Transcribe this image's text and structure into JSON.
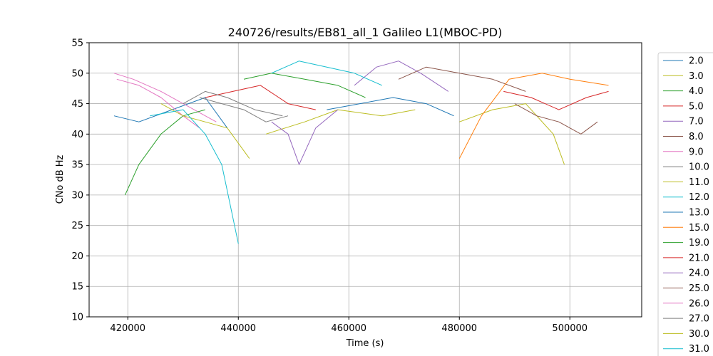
{
  "chart_data": {
    "type": "line",
    "title": "240726/results/EB81_all_1 Galileo L1(MBOC-PD)",
    "xlabel": "Time (s)",
    "ylabel": "CNo dB Hz",
    "xlim": [
      413000,
      513000
    ],
    "ylim": [
      10,
      55
    ],
    "xticks": [
      420000,
      440000,
      460000,
      480000,
      500000
    ],
    "xtick_labels": [
      "420000",
      "440000",
      "460000",
      "480000",
      "500000"
    ],
    "yticks": [
      10,
      15,
      20,
      25,
      30,
      35,
      40,
      45,
      50,
      55
    ],
    "ytick_labels": [
      "10",
      "15",
      "20",
      "25",
      "30",
      "35",
      "40",
      "45",
      "50",
      "55"
    ],
    "grid": true,
    "legend_position": "outside-right",
    "series": [
      {
        "name": "2.0",
        "color": "#1f77b4",
        "points": [
          [
            417500,
            43
          ],
          [
            422000,
            42
          ],
          [
            428000,
            44
          ],
          [
            434000,
            46
          ],
          [
            438000,
            41
          ]
        ]
      },
      {
        "name": "3.0",
        "color": "#bcbd22",
        "points": [
          [
            445000,
            40
          ],
          [
            452000,
            42
          ],
          [
            458000,
            44
          ],
          [
            466000,
            43
          ],
          [
            472000,
            44
          ]
        ]
      },
      {
        "name": "4.0",
        "color": "#2ca02c",
        "points": [
          [
            441000,
            49
          ],
          [
            446000,
            50
          ],
          [
            452000,
            49
          ],
          [
            458000,
            48
          ],
          [
            463000,
            46
          ]
        ]
      },
      {
        "name": "5.0",
        "color": "#d62728",
        "points": [
          [
            434000,
            46
          ],
          [
            439000,
            47
          ],
          [
            444000,
            48
          ],
          [
            449000,
            45
          ],
          [
            454000,
            44
          ]
        ]
      },
      {
        "name": "7.0",
        "color": "#9467bd",
        "points": [
          [
            461000,
            48
          ],
          [
            465000,
            51
          ],
          [
            469000,
            52
          ],
          [
            473000,
            50
          ],
          [
            478000,
            47
          ]
        ]
      },
      {
        "name": "8.0",
        "color": "#8c564b",
        "points": [
          [
            469000,
            49
          ],
          [
            474000,
            51
          ],
          [
            480000,
            50
          ],
          [
            486000,
            49
          ],
          [
            492000,
            47
          ]
        ]
      },
      {
        "name": "9.0",
        "color": "#e377c2",
        "points": [
          [
            417500,
            50
          ],
          [
            421000,
            49
          ],
          [
            426000,
            47
          ],
          [
            432000,
            44
          ],
          [
            436000,
            42
          ]
        ]
      },
      {
        "name": "10.0",
        "color": "#7f7f7f",
        "points": [
          [
            430000,
            45
          ],
          [
            434000,
            47
          ],
          [
            438000,
            46
          ],
          [
            443000,
            44
          ],
          [
            448000,
            43
          ]
        ]
      },
      {
        "name": "11.0",
        "color": "#bcbd22",
        "points": [
          [
            480000,
            42
          ],
          [
            486000,
            44
          ],
          [
            492000,
            45
          ],
          [
            497000,
            40
          ],
          [
            499000,
            35
          ]
        ]
      },
      {
        "name": "12.0",
        "color": "#17becf",
        "points": [
          [
            446000,
            50
          ],
          [
            451000,
            52
          ],
          [
            456000,
            51
          ],
          [
            461000,
            50
          ],
          [
            466000,
            48
          ]
        ]
      },
      {
        "name": "13.0",
        "color": "#1f77b4",
        "points": [
          [
            456000,
            44
          ],
          [
            462000,
            45
          ],
          [
            468000,
            46
          ],
          [
            474000,
            45
          ],
          [
            479000,
            43
          ]
        ]
      },
      {
        "name": "15.0",
        "color": "#ff7f0e",
        "points": [
          [
            480000,
            36
          ],
          [
            484000,
            43
          ],
          [
            489000,
            49
          ],
          [
            495000,
            50
          ],
          [
            500000,
            49
          ],
          [
            507000,
            48
          ]
        ]
      },
      {
        "name": "19.0",
        "color": "#2ca02c",
        "points": [
          [
            419500,
            30
          ],
          [
            422000,
            35
          ],
          [
            426000,
            40
          ],
          [
            430000,
            43
          ],
          [
            434000,
            44
          ]
        ]
      },
      {
        "name": "21.0",
        "color": "#d62728",
        "points": [
          [
            488000,
            47
          ],
          [
            493000,
            46
          ],
          [
            498000,
            44
          ],
          [
            503000,
            46
          ],
          [
            507000,
            47
          ]
        ]
      },
      {
        "name": "24.0",
        "color": "#9467bd",
        "points": [
          [
            446000,
            42
          ],
          [
            449000,
            40
          ],
          [
            451000,
            35
          ],
          [
            454000,
            41
          ],
          [
            458000,
            44
          ]
        ]
      },
      {
        "name": "25.0",
        "color": "#8c564b",
        "points": [
          [
            490000,
            45
          ],
          [
            494000,
            43
          ],
          [
            498000,
            42
          ],
          [
            502000,
            40
          ],
          [
            505000,
            42
          ]
        ]
      },
      {
        "name": "26.0",
        "color": "#e377c2",
        "points": [
          [
            418000,
            49
          ],
          [
            422000,
            48
          ],
          [
            426000,
            46
          ],
          [
            430000,
            43
          ],
          [
            433000,
            41
          ]
        ]
      },
      {
        "name": "27.0",
        "color": "#7f7f7f",
        "points": [
          [
            433000,
            46
          ],
          [
            437000,
            45
          ],
          [
            441000,
            44
          ],
          [
            445000,
            42
          ],
          [
            449000,
            43
          ]
        ]
      },
      {
        "name": "30.0",
        "color": "#bcbd22",
        "points": [
          [
            426000,
            45
          ],
          [
            430000,
            43
          ],
          [
            434000,
            42
          ],
          [
            438000,
            41
          ],
          [
            442000,
            36
          ]
        ]
      },
      {
        "name": "31.0",
        "color": "#17becf",
        "points": [
          [
            424000,
            43
          ],
          [
            430000,
            44
          ],
          [
            434000,
            40
          ],
          [
            437000,
            35
          ],
          [
            440000,
            22
          ]
        ]
      }
    ]
  }
}
